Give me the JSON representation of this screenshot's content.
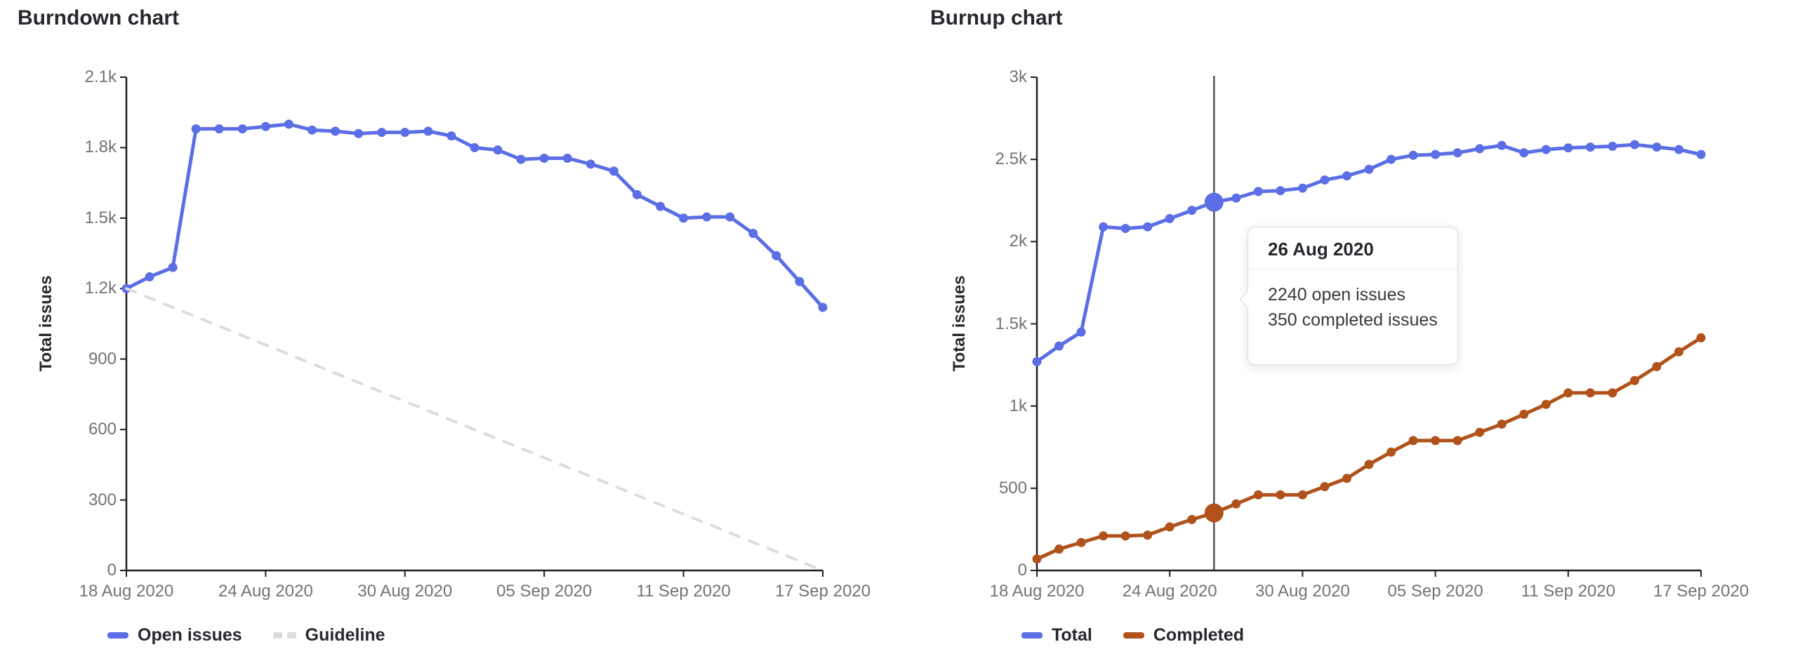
{
  "colors": {
    "open_issues_blue": "#5b6ee5",
    "completed_orange": "#b0521a",
    "guideline_gray": "#dcdcde",
    "axis": "#1f1e24",
    "tick_text": "#737278",
    "heading_text": "#28272d",
    "crosshair": "#54535a",
    "tooltip_border": "#dcdcde"
  },
  "charts": [
    {
      "title": "Burndown chart",
      "y_axis_label": "Total issues",
      "y_ticks": [
        "0",
        "300",
        "600",
        "900",
        "1.2k",
        "1.5k",
        "1.8k",
        "2.1k"
      ],
      "x_ticks": [
        "18 Aug 2020",
        "24 Aug 2020",
        "30 Aug 2020",
        "05 Sep 2020",
        "11 Sep 2020",
        "17 Sep 2020"
      ],
      "x_tick_days": [
        0,
        6,
        12,
        18,
        24,
        30
      ],
      "legend": [
        {
          "label": "Open issues",
          "color": "#5b6ee5",
          "style": "solid"
        },
        {
          "label": "Guideline",
          "color": "#dcdcde",
          "style": "dashed"
        }
      ],
      "chart_data": {
        "type": "line",
        "x_start": "18 Aug 2020",
        "x_end": "17 Sep 2020",
        "x_interval": "daily",
        "days": 30,
        "y_max": 2100,
        "ylim": [
          0,
          2100
        ],
        "grid": false,
        "legend_position": "bottom-left",
        "series": [
          {
            "name": "Open issues",
            "color": "#5b6ee5",
            "points": true,
            "values": [
              1200,
              1250,
              1290,
              1880,
              1880,
              1880,
              1890,
              1900,
              1875,
              1870,
              1860,
              1865,
              1865,
              1870,
              1850,
              1800,
              1790,
              1750,
              1755,
              1755,
              1730,
              1700,
              1600,
              1550,
              1500,
              1505,
              1505,
              1435,
              1340,
              1230,
              1120
            ]
          },
          {
            "name": "Guideline",
            "color": "#dcdcde",
            "points": false,
            "dashed": true,
            "x_days": [
              0,
              30
            ],
            "values": [
              1200,
              0
            ]
          }
        ]
      }
    },
    {
      "title": "Burnup chart",
      "y_axis_label": "Total issues",
      "y_ticks": [
        "0",
        "500",
        "1k",
        "1.5k",
        "2k",
        "2.5k",
        "3k"
      ],
      "x_ticks": [
        "18 Aug 2020",
        "24 Aug 2020",
        "30 Aug 2020",
        "05 Sep 2020",
        "11 Sep 2020",
        "17 Sep 2020"
      ],
      "x_tick_days": [
        0,
        6,
        12,
        18,
        24,
        30
      ],
      "legend": [
        {
          "label": "Total",
          "color": "#5b6ee5",
          "style": "solid"
        },
        {
          "label": "Completed",
          "color": "#b0521a",
          "style": "solid"
        }
      ],
      "crosshair_day": 8,
      "tooltip": {
        "date": "26 Aug 2020",
        "lines": [
          "2240 open issues",
          "350 completed issues"
        ],
        "marker_values": {
          "Total": 2240,
          "Completed": 350
        }
      },
      "chart_data": {
        "type": "line",
        "x_start": "18 Aug 2020",
        "x_end": "17 Sep 2020",
        "x_interval": "daily",
        "days": 30,
        "y_max": 3000,
        "ylim": [
          0,
          3000
        ],
        "grid": false,
        "legend_position": "bottom-left",
        "series": [
          {
            "name": "Total",
            "color": "#5b6ee5",
            "points": true,
            "values": [
              1270,
              1365,
              1450,
              2090,
              2080,
              2090,
              2140,
              2190,
              2240,
              2265,
              2305,
              2310,
              2325,
              2375,
              2400,
              2440,
              2500,
              2525,
              2530,
              2540,
              2565,
              2585,
              2540,
              2560,
              2570,
              2575,
              2580,
              2590,
              2575,
              2560,
              2530
            ]
          },
          {
            "name": "Completed",
            "color": "#b0521a",
            "points": true,
            "values": [
              70,
              130,
              170,
              210,
              210,
              215,
              265,
              310,
              350,
              405,
              460,
              460,
              460,
              510,
              560,
              645,
              720,
              790,
              790,
              790,
              840,
              890,
              950,
              1010,
              1080,
              1080,
              1080,
              1155,
              1240,
              1330,
              1415
            ]
          }
        ]
      }
    }
  ]
}
